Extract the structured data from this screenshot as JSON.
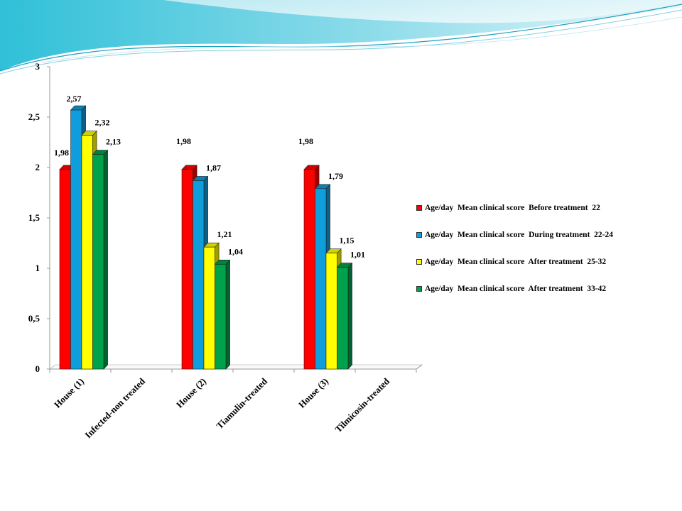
{
  "chart_data": {
    "type": "bar",
    "categories": [
      "House (1)",
      "Infected-non treated",
      "House (2)",
      "Tiamulin-treated",
      "House (3)",
      "Tilmicosin-treated"
    ],
    "series": [
      {
        "name": "Age/day  Mean clinical score  Before treatment  22",
        "color": "#ff0000",
        "values": [
          1.98,
          null,
          1.98,
          null,
          1.98,
          null
        ],
        "labels": [
          "1,98",
          "",
          "1,98",
          "",
          "1,98",
          ""
        ]
      },
      {
        "name": "Age/day  Mean clinical score  During treatment  22-24",
        "color": "#0f9ddb",
        "values": [
          2.57,
          null,
          1.87,
          null,
          1.79,
          null
        ],
        "labels": [
          "2,57",
          "",
          "1,87",
          "",
          "1,79",
          ""
        ]
      },
      {
        "name": "Age/day  Mean clinical score  After treatment  25-32",
        "color": "#ffff00",
        "values": [
          2.32,
          null,
          1.21,
          null,
          1.15,
          null
        ],
        "labels": [
          "2,32",
          "",
          "1,21",
          "",
          "1,15",
          ""
        ]
      },
      {
        "name": "Age/day  Mean clinical score  After treatment  33-42",
        "color": "#00a14b",
        "values": [
          2.13,
          null,
          1.04,
          null,
          1.01,
          null
        ],
        "labels": [
          "2,13",
          "",
          "1,04",
          "",
          "1,01",
          ""
        ]
      }
    ],
    "yticks": [
      "0",
      "0,5",
      "1",
      "1,5",
      "2",
      "2,5",
      "3"
    ],
    "ylim": [
      0,
      3
    ],
    "title": "",
    "xlabel": "",
    "ylabel": "",
    "legend_position": "right",
    "grid": false
  }
}
